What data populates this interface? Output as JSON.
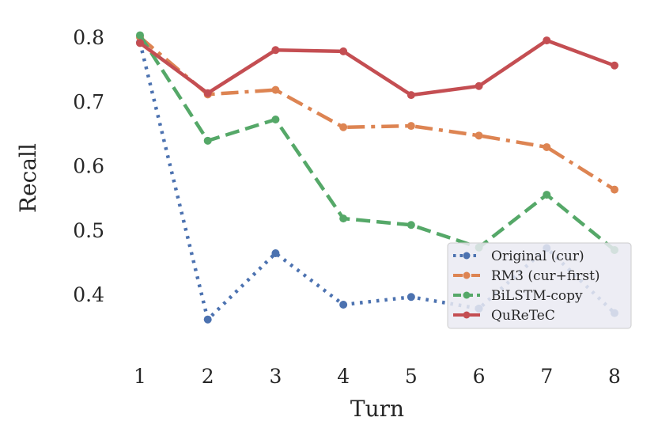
{
  "chart_data": {
    "type": "line",
    "xlabel": "Turn",
    "ylabel": "Recall",
    "x": [
      1,
      2,
      3,
      4,
      5,
      6,
      7,
      8
    ],
    "xticks": [
      "1",
      "2",
      "3",
      "4",
      "5",
      "6",
      "7",
      "8"
    ],
    "yticks": [
      "0.4",
      "0.5",
      "0.6",
      "0.7",
      "0.8"
    ],
    "ylim": [
      0.31,
      0.82
    ],
    "xlim": [
      0.5,
      8.5
    ],
    "grid": false,
    "legend_position": "lower-right",
    "series": [
      {
        "name": "Original (cur)",
        "color": "#4c72b0",
        "style": "dotted",
        "values": [
          0.792,
          0.361,
          0.464,
          0.384,
          0.396,
          0.378,
          0.472,
          0.371
        ]
      },
      {
        "name": "RM3 (cur+first)",
        "color": "#dd8452",
        "style": "dashdot",
        "values": [
          0.8,
          0.711,
          0.718,
          0.66,
          0.662,
          0.647,
          0.629,
          0.563
        ]
      },
      {
        "name": "BiLSTM-copy",
        "color": "#55a868",
        "style": "dashed",
        "values": [
          0.803,
          0.639,
          0.672,
          0.518,
          0.508,
          0.473,
          0.555,
          0.469
        ]
      },
      {
        "name": "QuReTeC",
        "color": "#c44e52",
        "style": "solid",
        "values": [
          0.791,
          0.713,
          0.78,
          0.778,
          0.71,
          0.724,
          0.795,
          0.756
        ]
      }
    ]
  }
}
